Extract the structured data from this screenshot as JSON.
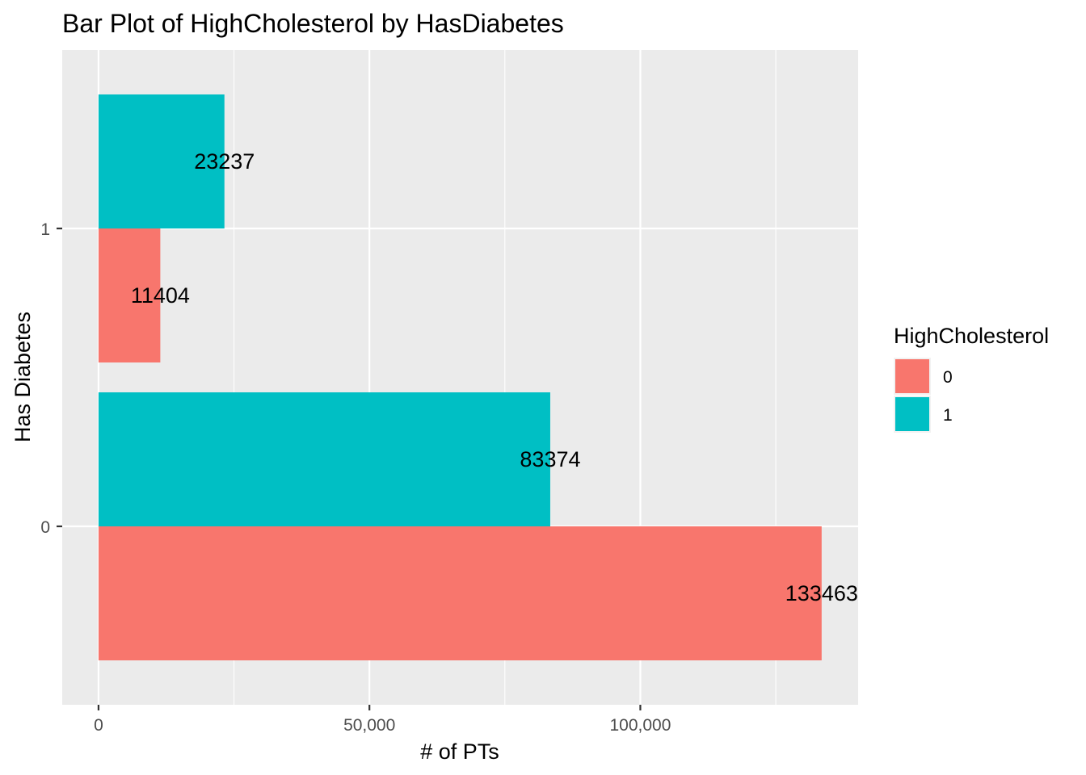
{
  "chart_data": {
    "type": "bar",
    "orientation": "horizontal",
    "title": "Bar Plot of HighCholesterol by HasDiabetes",
    "xlabel": "# of PTs",
    "ylabel": "Has Diabetes",
    "categories": [
      "0",
      "1"
    ],
    "series": [
      {
        "name": "0",
        "color": "#F8766D",
        "values": [
          133463,
          11404
        ]
      },
      {
        "name": "1",
        "color": "#00BFC4",
        "values": [
          83374,
          23237
        ]
      }
    ],
    "data_labels": [
      [
        "133463",
        "83374"
      ],
      [
        "11404",
        "23237"
      ]
    ],
    "xlim": [
      -6700,
      140200
    ],
    "x_ticks": [
      {
        "value": 0,
        "label": "0"
      },
      {
        "value": 50000,
        "label": "50,000"
      },
      {
        "value": 100000,
        "label": "100,000"
      }
    ],
    "x_minor_ticks": [
      25000,
      75000,
      125000
    ],
    "legend": {
      "title": "HighCholesterol",
      "placement": "right",
      "items": [
        "0",
        "1"
      ]
    },
    "grid": true,
    "panel_background": "#EBEBEB",
    "grid_color": "#FFFFFF"
  }
}
